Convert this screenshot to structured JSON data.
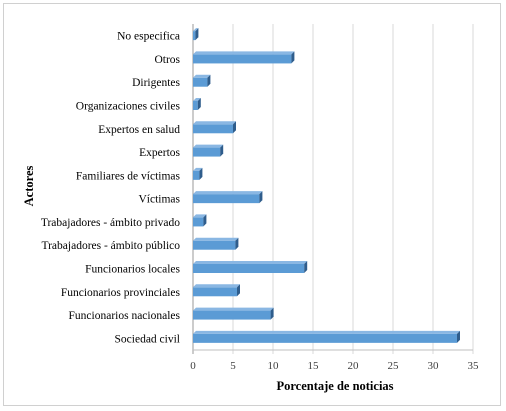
{
  "chart_data": {
    "type": "bar",
    "orientation": "horizontal",
    "categories": [
      "No especifica",
      "Otros",
      "Dirigentes",
      "Organizaciones  civiles",
      "Expertos en salud",
      "Expertos",
      "Familiares  de víctimas",
      "Víctimas",
      "Trabajadores - ámbito privado",
      "Trabajadores - ámbito público",
      "Funcionarios locales",
      "Funcionarios provinciales",
      "Funcionarios nacionales",
      "Sociedad civil"
    ],
    "values": [
      0.3,
      12.3,
      1.8,
      0.6,
      5.0,
      3.4,
      0.8,
      8.3,
      1.3,
      5.3,
      13.9,
      5.5,
      9.7,
      33.0
    ],
    "xlabel": "Porcentaje de noticias",
    "ylabel": "Actores",
    "xlim": [
      0,
      35
    ],
    "xticks": [
      "0",
      "5",
      "10",
      "15",
      "20",
      "25",
      "30",
      "35"
    ],
    "grid": "vertical",
    "bar_color": "#5b9bd5",
    "bar_style": "3d"
  }
}
